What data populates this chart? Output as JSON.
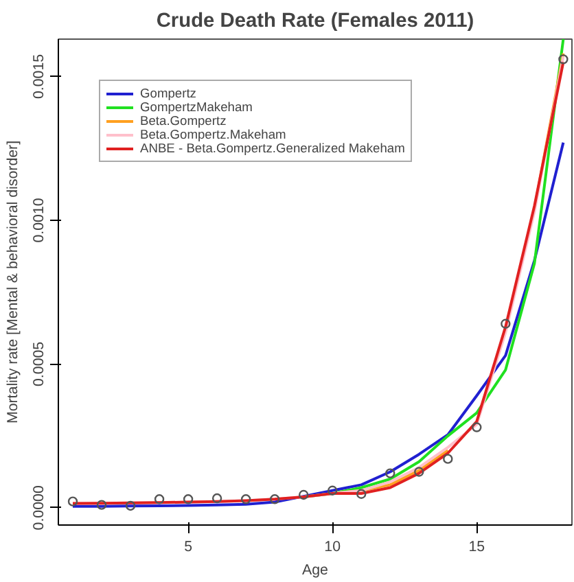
{
  "chart_data": {
    "type": "line",
    "title": "Crude Death Rate (Females 2011)",
    "xlabel": "Age",
    "ylabel": "Mortality rate [Mental & behavioral disorder]",
    "x": [
      1,
      2,
      3,
      4,
      5,
      6,
      7,
      8,
      9,
      10,
      11,
      12,
      13,
      14,
      15,
      16,
      17,
      18
    ],
    "series": [
      {
        "type": "scatter",
        "color": "#555555",
        "marker": "circle",
        "values": [
          2.2e-05,
          1e-05,
          7e-06,
          3e-05,
          3e-05,
          3.3e-05,
          3e-05,
          3e-05,
          4.5e-05,
          6e-05,
          4.8e-05,
          0.00012,
          0.000125,
          0.00017,
          0.00028,
          0.00064,
          null,
          0.00156
        ]
      },
      {
        "name": "Gompertz",
        "color": "#2020d0",
        "values": [
          5e-06,
          5e-06,
          6e-06,
          7e-06,
          8e-06,
          1e-05,
          1.2e-05,
          2e-05,
          4e-05,
          6e-05,
          8e-05,
          0.000125,
          0.000186,
          0.000254,
          0.00039,
          0.00053,
          0.00086,
          0.00127
        ]
      },
      {
        "name": "GompertzMakeham",
        "color": "#20e020",
        "values": [
          null,
          null,
          null,
          null,
          null,
          null,
          null,
          null,
          3.8e-05,
          5e-05,
          7e-05,
          0.0001,
          0.00016,
          0.00025,
          0.00033,
          0.00048,
          0.00085,
          0.00163
        ]
      },
      {
        "name": "Beta.Gompertz",
        "color": "#ffa020",
        "values": [
          null,
          null,
          null,
          null,
          null,
          null,
          null,
          null,
          null,
          5e-05,
          6e-05,
          8e-05,
          0.00013,
          0.0002,
          null,
          0.00062,
          0.00104,
          0.00158
        ]
      },
      {
        "name": "Beta.Gompertz.Makeham",
        "color": "#ffc0cb",
        "values": [
          1.5e-05,
          1.6e-05,
          1.7e-05,
          1.8e-05,
          2e-05,
          2.2e-05,
          2.5e-05,
          3e-05,
          3.8e-05,
          5e-05,
          6e-05,
          9e-05,
          0.00014,
          0.00021,
          0.00029,
          0.00061,
          0.00103,
          0.00157
        ]
      },
      {
        "name": "ANBE - Beta.Gompertz.Generalized Makeham",
        "color": "#e02020",
        "values": [
          1.5e-05,
          1.6e-05,
          1.7e-05,
          1.8e-05,
          2e-05,
          2.2e-05,
          2.5e-05,
          3e-05,
          3.8e-05,
          5e-05,
          5e-05,
          7e-05,
          0.00012,
          0.00019,
          0.0003,
          0.00063,
          0.00105,
          0.00155
        ]
      }
    ],
    "xlim": [
      0.5,
      18.3
    ],
    "ylim": [
      -6e-05,
      0.00163
    ],
    "xticks": [
      5,
      10,
      15
    ],
    "yticks": [
      {
        "value": 0,
        "label": "0.0000"
      },
      {
        "value": 0.0005,
        "label": "0.0005"
      },
      {
        "value": 0.001,
        "label": "0.0010"
      },
      {
        "value": 0.0015,
        "label": "0.0015"
      }
    ],
    "grid": false,
    "legend": "top left"
  }
}
